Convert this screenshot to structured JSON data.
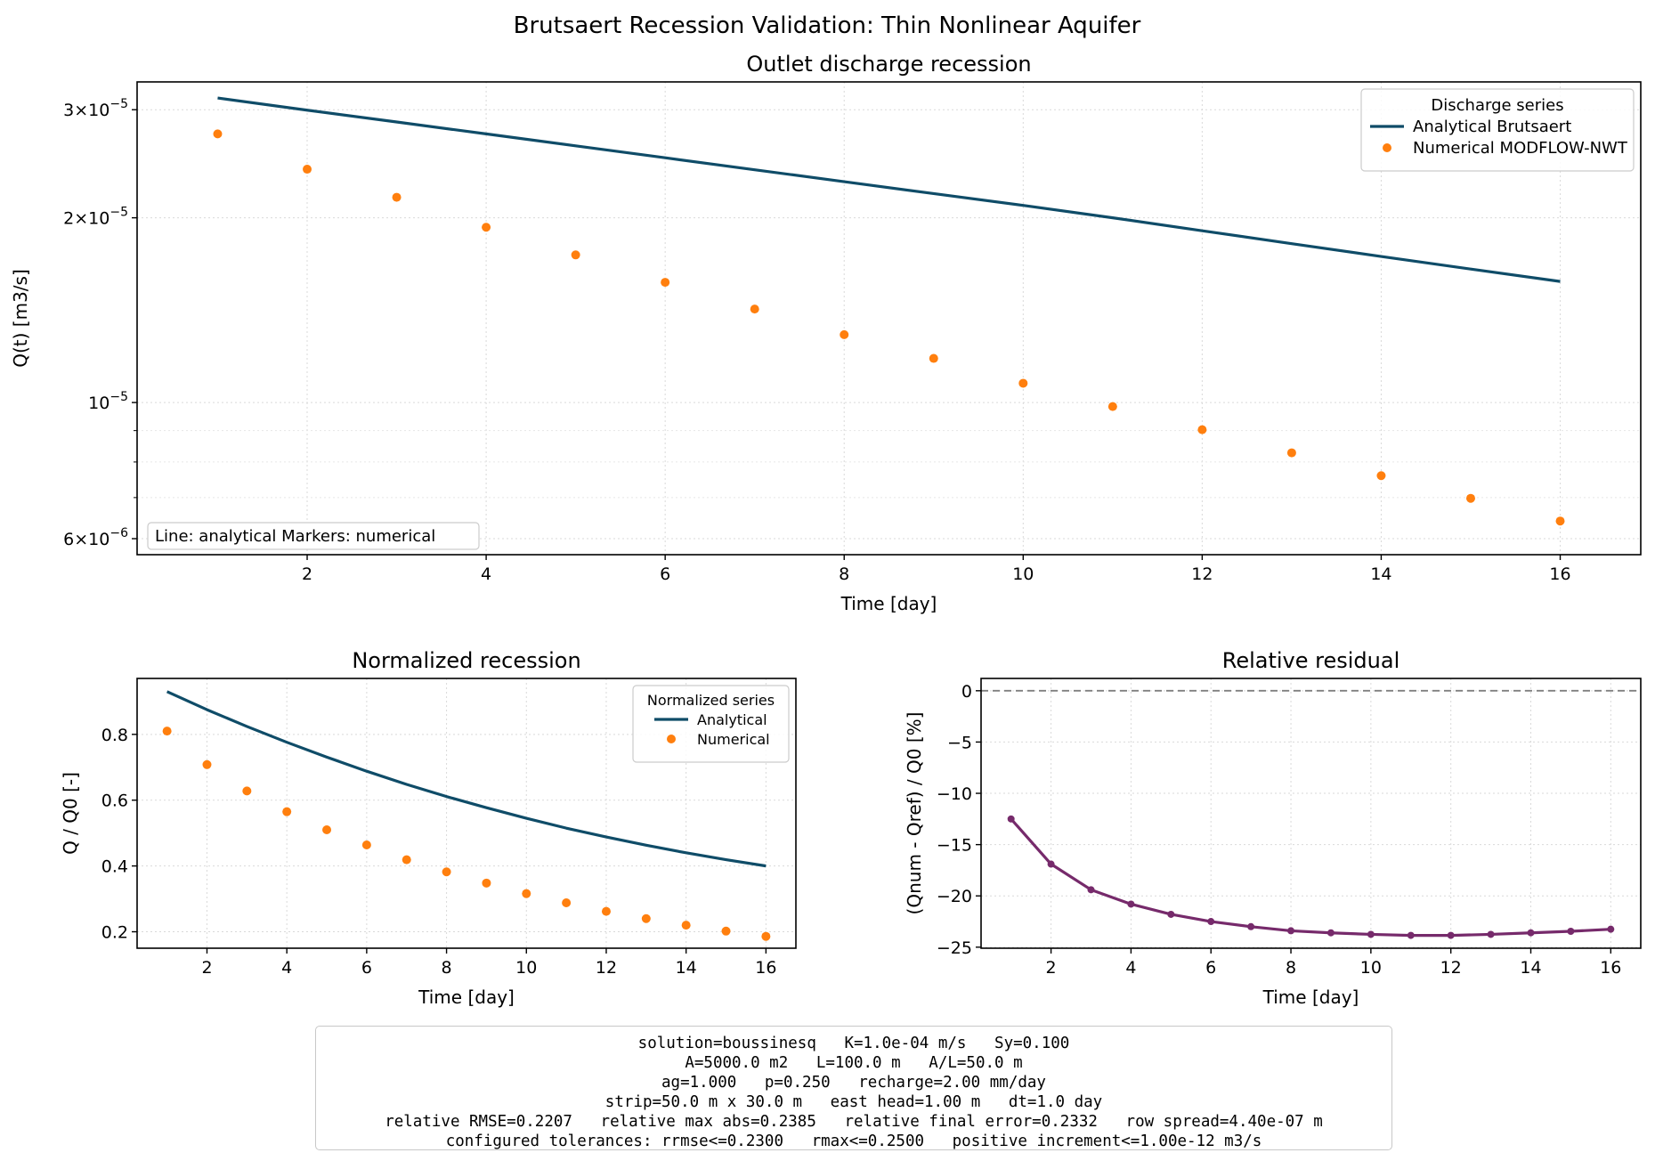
{
  "figure": {
    "suptitle": "Brutsaert Recession Validation: Thin Nonlinear Aquifer"
  },
  "colors": {
    "analytical": "#0f4c68",
    "numerical": "#ff7f0e",
    "residual": "#762a6b",
    "zero_line": "#808080",
    "grid": "#d9d9d9"
  },
  "chart_data": [
    {
      "id": "top",
      "type": "line",
      "title": "Outlet discharge recession",
      "xlabel": "Time [day]",
      "ylabel": "Q(t) [m3/s]",
      "yscale": "log",
      "xlim": [
        0.1,
        16.9
      ],
      "ylim": [
        5.65e-06,
        3.33e-05
      ],
      "xticks": [
        2,
        4,
        6,
        8,
        10,
        12,
        14,
        16
      ],
      "yticks": [
        {
          "value": 3e-05,
          "mantissa": "3",
          "exponent": "−5"
        },
        {
          "value": 2e-05,
          "mantissa": "2",
          "exponent": "−5"
        },
        {
          "value": 1e-05,
          "mantissa": "",
          "exponent": "−5"
        },
        {
          "value": 6e-06,
          "mantissa": "6",
          "exponent": "−6"
        }
      ],
      "grid": true,
      "x": [
        1,
        2,
        3,
        4,
        5,
        6,
        7,
        8,
        9,
        10,
        11,
        12,
        13,
        14,
        15,
        16
      ],
      "series": [
        {
          "name": "Analytical Brutsaert",
          "kind": "line",
          "values": [
            3.135e-05,
            2.995e-05,
            2.865e-05,
            2.74e-05,
            2.62e-05,
            2.505e-05,
            2.395e-05,
            2.29e-05,
            2.19e-05,
            2.095e-05,
            2e-05,
            1.905e-05,
            1.815e-05,
            1.73e-05,
            1.65e-05,
            1.575e-05
          ]
        },
        {
          "name": "Numerical MODFLOW-NWT",
          "kind": "scatter",
          "values": [
            2.74e-05,
            2.4e-05,
            2.16e-05,
            1.93e-05,
            1.74e-05,
            1.57e-05,
            1.42e-05,
            1.29e-05,
            1.18e-05,
            1.075e-05,
            9.85e-06,
            9.03e-06,
            8.28e-06,
            7.6e-06,
            6.98e-06,
            6.41e-06
          ]
        }
      ],
      "legend": {
        "title": "Discharge series",
        "loc": "upper right"
      },
      "annotation": "Line: analytical   Markers: numerical"
    },
    {
      "id": "bottom-left",
      "type": "line",
      "title": "Normalized recession",
      "xlabel": "Time [day]",
      "ylabel": "Q / Q0 [-]",
      "xlim": [
        0.25,
        16.75
      ],
      "ylim": [
        0.15,
        0.97
      ],
      "xticks": [
        2,
        4,
        6,
        8,
        10,
        12,
        14,
        16
      ],
      "yticks": [
        0.2,
        0.4,
        0.6,
        0.8
      ],
      "grid": true,
      "x": [
        1,
        2,
        3,
        4,
        5,
        6,
        7,
        8,
        9,
        10,
        11,
        12,
        13,
        14,
        15,
        16
      ],
      "series": [
        {
          "name": "Analytical",
          "kind": "line",
          "values": [
            0.93,
            0.875,
            0.824,
            0.776,
            0.731,
            0.688,
            0.648,
            0.611,
            0.577,
            0.545,
            0.515,
            0.488,
            0.463,
            0.44,
            0.419,
            0.4
          ]
        },
        {
          "name": "Numerical",
          "kind": "scatter",
          "values": [
            0.81,
            0.708,
            0.628,
            0.565,
            0.51,
            0.464,
            0.419,
            0.382,
            0.348,
            0.316,
            0.288,
            0.262,
            0.24,
            0.22,
            0.202,
            0.186
          ]
        }
      ],
      "legend": {
        "title": "Normalized series",
        "loc": "upper right"
      }
    },
    {
      "id": "bottom-right",
      "type": "line",
      "title": "Relative residual",
      "xlabel": "Time [day]",
      "ylabel": "(Qnum - Qref) / Q0 [%]",
      "xlim": [
        0.25,
        16.75
      ],
      "ylim": [
        -25.1,
        1.2
      ],
      "xticks": [
        2,
        4,
        6,
        8,
        10,
        12,
        14,
        16
      ],
      "yticks": [
        0,
        -5,
        -10,
        -15,
        -20,
        -25
      ],
      "grid": true,
      "reference_line": 0,
      "x": [
        1,
        2,
        3,
        4,
        5,
        6,
        7,
        8,
        9,
        10,
        11,
        12,
        13,
        14,
        15,
        16
      ],
      "series": [
        {
          "kind": "line+markers",
          "values": [
            -12.5,
            -16.9,
            -19.4,
            -20.8,
            -21.8,
            -22.5,
            -23.0,
            -23.4,
            -23.6,
            -23.75,
            -23.85,
            -23.85,
            -23.75,
            -23.6,
            -23.45,
            -23.25
          ]
        }
      ]
    }
  ],
  "info_box": {
    "lines": [
      "solution=boussinesq   K=1.0e-04 m/s   Sy=0.100",
      "A=5000.0 m2   L=100.0 m   A/L=50.0 m",
      "ag=1.000   p=0.250   recharge=2.00 mm/day",
      "strip=50.0 m x 30.0 m   east head=1.00 m   dt=1.0 day",
      "relative RMSE=0.2207   relative max abs=0.2385   relative final error=0.2332   row spread=4.40e-07 m",
      "configured tolerances: rrmse<=0.2300   rmax<=0.2500   positive increment<=1.00e-12 m3/s"
    ]
  }
}
